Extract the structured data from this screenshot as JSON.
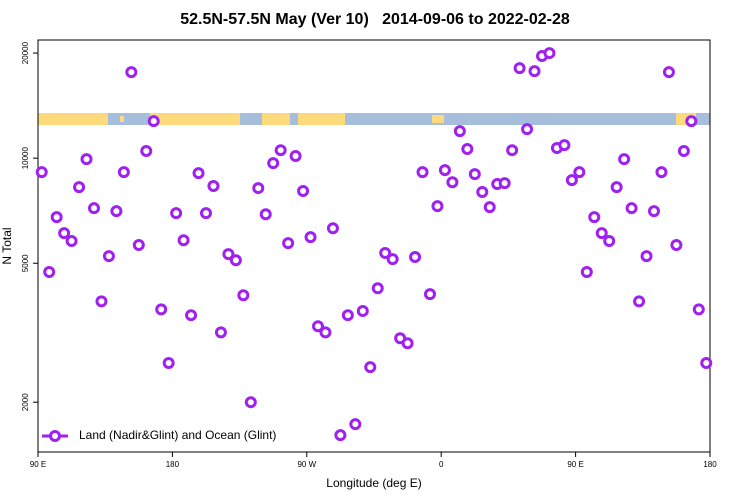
{
  "chart_data": {
    "type": "scatter",
    "title": "52.5N-57.5N May (Ver 10)   2014-09-06 to 2022-02-28",
    "xlabel": "Longitude (deg E)",
    "ylabel": "N Total",
    "xlim": [
      90,
      540
    ],
    "xticks": [
      {
        "value": 90,
        "label": "90 E"
      },
      180,
      {
        "value": 270,
        "label": "90 W"
      },
      {
        "value": 360,
        "label": "0"
      },
      {
        "value": 450,
        "label": "90 E"
      },
      {
        "value": 540,
        "label": "180"
      }
    ],
    "ylim": [
      1440,
      21800
    ],
    "yscale": "log",
    "yticks": [
      2000,
      5000,
      10000,
      20000
    ],
    "legend": "bottom-left",
    "series": [
      {
        "name": "Land (Nadir&Glint) and Ocean (Glint)",
        "color": "#a020f0",
        "x": [
          92.5,
          97.5,
          102.5,
          107.5,
          112.5,
          117.5,
          122.5,
          127.5,
          132.5,
          137.5,
          142.5,
          147.5,
          152.5,
          157.5,
          162.5,
          167.5,
          172.5,
          177.5,
          182.5,
          187.5,
          192.5,
          197.5,
          202.5,
          207.5,
          212.5,
          217.5,
          222.5,
          227.5,
          232.5,
          237.5,
          242.5,
          247.5,
          252.5,
          257.5,
          262.5,
          267.5,
          272.5,
          277.5,
          282.5,
          287.5,
          292.5,
          297.5,
          302.5,
          307.5,
          312.5,
          317.5,
          322.5,
          327.5,
          332.5,
          337.5,
          342.5,
          347.5,
          352.5,
          357.5,
          362.5,
          367.5,
          372.5,
          377.5,
          382.5,
          387.5,
          392.5,
          397.5,
          402.5,
          407.5,
          412.5,
          417.5,
          422.5,
          427.5,
          432.5,
          437.5,
          442.5,
          447.5,
          452.5,
          457.5,
          462.5,
          467.5,
          472.5,
          477.5,
          482.5,
          487.5,
          492.5,
          497.5,
          502.5,
          507.5,
          512.5,
          517.5,
          522.5,
          527.5,
          532.5,
          537.5
        ],
        "values": [
          9120,
          4720,
          6780,
          6100,
          5790,
          8260,
          9940,
          7190,
          3890,
          5240,
          7050,
          9120,
          17640,
          5640,
          10480,
          12770,
          3690,
          2590,
          6960,
          5820,
          3550,
          9060,
          6960,
          8320,
          3170,
          5310,
          5100,
          4050,
          2000,
          8210,
          6910,
          9680,
          10540,
          5710,
          10140,
          8050,
          5940,
          3300,
          3170,
          6300,
          1610,
          3550,
          1730,
          3650,
          2520,
          4240,
          5350,
          5140,
          3050,
          2950,
          5210,
          9120,
          4080,
          7290,
          9240,
          8530,
          11950,
          10620,
          9000,
          8000,
          7240,
          8430,
          8480,
          10540,
          18110,
          12110,
          17760,
          19610,
          20000,
          10690,
          10900,
          8650,
          9120,
          4720,
          6780,
          6100,
          5790,
          8260,
          9940,
          7190,
          3890,
          5240,
          7050,
          9120,
          17640,
          5640,
          10480,
          12770,
          3690,
          2590
        ]
      }
    ]
  }
}
